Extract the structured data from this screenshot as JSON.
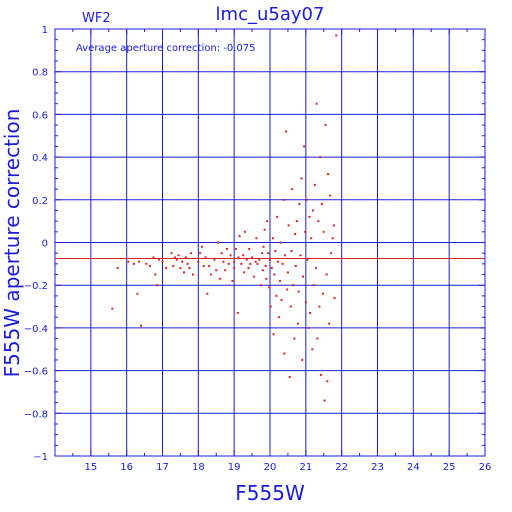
{
  "chart_data": {
    "type": "scatter",
    "title": "lmc_u5ay07",
    "corner_label": "WF2",
    "annotation": "Average aperture correction: -0.075",
    "xlabel": "F555W",
    "ylabel": "F555W aperture correction",
    "xlim": [
      14,
      26
    ],
    "ylim": [
      -1,
      1
    ],
    "x_ticks": [
      15,
      16,
      17,
      18,
      19,
      20,
      21,
      22,
      23,
      24,
      25,
      26
    ],
    "y_ticks": [
      -1,
      -0.8,
      -0.6,
      -0.4,
      -0.2,
      0,
      0.2,
      0.4,
      0.6,
      0.8,
      1
    ],
    "y_tick_labels": [
      "−1",
      "−0.8",
      "−0.6",
      "−0.4",
      "−0.2",
      "0",
      "0.2",
      "0.4",
      "0.6",
      "0.8",
      "1"
    ],
    "grid": true,
    "reference_lines": [
      {
        "axis": "y",
        "value": 0,
        "color": "#1b1be0"
      },
      {
        "axis": "y",
        "value": -0.075,
        "color": "#e02020"
      }
    ],
    "colors": {
      "axes": "#1b1be0",
      "points": "#e02020",
      "average_line": "#e02020"
    },
    "points": [
      [
        15.6,
        -0.31
      ],
      [
        15.75,
        -0.12
      ],
      [
        16.05,
        -0.09
      ],
      [
        16.2,
        -0.1
      ],
      [
        16.3,
        -0.24
      ],
      [
        16.35,
        -0.09
      ],
      [
        16.4,
        -0.39
      ],
      [
        16.55,
        -0.1
      ],
      [
        16.65,
        -0.11
      ],
      [
        16.75,
        -0.07
      ],
      [
        16.8,
        -0.15
      ],
      [
        16.85,
        -0.2
      ],
      [
        16.9,
        -0.08
      ],
      [
        17.0,
        -0.09
      ],
      [
        17.1,
        -0.12
      ],
      [
        17.25,
        -0.05
      ],
      [
        17.3,
        -0.11
      ],
      [
        17.35,
        -0.07
      ],
      [
        17.4,
        -0.08
      ],
      [
        17.45,
        -0.06
      ],
      [
        17.5,
        -0.12
      ],
      [
        17.55,
        -0.09
      ],
      [
        17.6,
        -0.14
      ],
      [
        17.65,
        -0.07
      ],
      [
        17.7,
        -0.1
      ],
      [
        17.75,
        -0.12
      ],
      [
        17.8,
        -0.05
      ],
      [
        17.85,
        -0.15
      ],
      [
        18.0,
        -0.09
      ],
      [
        18.05,
        -0.05
      ],
      [
        18.1,
        -0.02
      ],
      [
        18.15,
        -0.11
      ],
      [
        18.2,
        -0.07
      ],
      [
        18.25,
        -0.24
      ],
      [
        18.3,
        -0.11
      ],
      [
        18.35,
        -0.15
      ],
      [
        18.45,
        -0.08
      ],
      [
        18.5,
        -0.13
      ],
      [
        18.55,
        0.0
      ],
      [
        18.6,
        -0.17
      ],
      [
        18.65,
        -0.05
      ],
      [
        18.7,
        -0.09
      ],
      [
        18.75,
        -0.13
      ],
      [
        18.8,
        -0.03
      ],
      [
        18.85,
        -0.1
      ],
      [
        18.9,
        -0.06
      ],
      [
        18.95,
        -0.18
      ],
      [
        19.0,
        -0.09
      ],
      [
        19.0,
        -0.12
      ],
      [
        19.05,
        -0.03
      ],
      [
        19.1,
        -0.33
      ],
      [
        19.12,
        -0.07
      ],
      [
        19.15,
        0.03
      ],
      [
        19.2,
        -0.1
      ],
      [
        19.25,
        -0.06
      ],
      [
        19.28,
        -0.14
      ],
      [
        19.3,
        0.05
      ],
      [
        19.35,
        -0.08
      ],
      [
        19.4,
        -0.12
      ],
      [
        19.42,
        -0.03
      ],
      [
        19.45,
        -0.1
      ],
      [
        19.5,
        -0.07
      ],
      [
        19.55,
        -0.16
      ],
      [
        19.6,
        -0.09
      ],
      [
        19.62,
        0.02
      ],
      [
        19.65,
        -0.1
      ],
      [
        19.7,
        -0.08
      ],
      [
        19.75,
        -0.2
      ],
      [
        19.78,
        -0.05
      ],
      [
        19.8,
        -0.13
      ],
      [
        19.82,
        -0.02
      ],
      [
        19.85,
        0.06
      ],
      [
        19.88,
        -0.11
      ],
      [
        19.9,
        -0.17
      ],
      [
        19.92,
        0.1
      ],
      [
        19.95,
        -0.05
      ],
      [
        19.98,
        -0.21
      ],
      [
        20.0,
        -0.08
      ],
      [
        20.02,
        -0.3
      ],
      [
        20.05,
        -0.12
      ],
      [
        20.08,
        0.02
      ],
      [
        20.1,
        -0.43
      ],
      [
        20.12,
        -0.15
      ],
      [
        20.15,
        -0.04
      ],
      [
        20.18,
        -0.25
      ],
      [
        20.2,
        0.12
      ],
      [
        20.22,
        -0.09
      ],
      [
        20.25,
        -0.35
      ],
      [
        20.28,
        -0.18
      ],
      [
        20.3,
        0.0
      ],
      [
        20.32,
        -0.27
      ],
      [
        20.35,
        -0.1
      ],
      [
        20.38,
        0.2
      ],
      [
        20.4,
        -0.52
      ],
      [
        20.42,
        -0.06
      ],
      [
        20.45,
        0.52
      ],
      [
        20.48,
        -0.22
      ],
      [
        20.5,
        -0.14
      ],
      [
        20.52,
        0.08
      ],
      [
        20.55,
        -0.63
      ],
      [
        20.58,
        -0.3
      ],
      [
        20.6,
        -0.04
      ],
      [
        20.62,
        0.25
      ],
      [
        20.65,
        -0.2
      ],
      [
        20.68,
        -0.45
      ],
      [
        20.7,
        0.04
      ],
      [
        20.72,
        -0.11
      ],
      [
        20.75,
        0.1
      ],
      [
        20.78,
        -0.38
      ],
      [
        20.8,
        -0.23
      ],
      [
        20.82,
        0.18
      ],
      [
        20.85,
        -0.06
      ],
      [
        20.88,
        0.3
      ],
      [
        20.9,
        -0.55
      ],
      [
        20.92,
        -0.16
      ],
      [
        20.95,
        0.45
      ],
      [
        20.98,
        0.05
      ],
      [
        21.0,
        -0.28
      ],
      [
        21.02,
        0.2
      ],
      [
        21.05,
        -0.08
      ],
      [
        21.08,
        -0.4
      ],
      [
        21.1,
        0.12
      ],
      [
        21.12,
        -0.33
      ],
      [
        21.15,
        0.02
      ],
      [
        21.18,
        -0.5
      ],
      [
        21.2,
        0.15
      ],
      [
        21.22,
        -0.2
      ],
      [
        21.25,
        0.27
      ],
      [
        21.28,
        -0.12
      ],
      [
        21.3,
        0.65
      ],
      [
        21.32,
        -0.45
      ],
      [
        21.35,
        0.1
      ],
      [
        21.38,
        -0.3
      ],
      [
        21.4,
        0.4
      ],
      [
        21.42,
        -0.62
      ],
      [
        21.45,
        0.18
      ],
      [
        21.48,
        -0.24
      ],
      [
        21.5,
        0.05
      ],
      [
        21.52,
        -0.74
      ],
      [
        21.55,
        0.55
      ],
      [
        21.58,
        -0.15
      ],
      [
        21.6,
        -0.65
      ],
      [
        21.62,
        0.32
      ],
      [
        21.65,
        -0.38
      ],
      [
        21.68,
        0.22
      ],
      [
        21.7,
        -0.05
      ],
      [
        21.75,
        0.02
      ],
      [
        21.78,
        0.08
      ],
      [
        21.8,
        -0.26
      ],
      [
        21.85,
        0.97
      ]
    ]
  }
}
